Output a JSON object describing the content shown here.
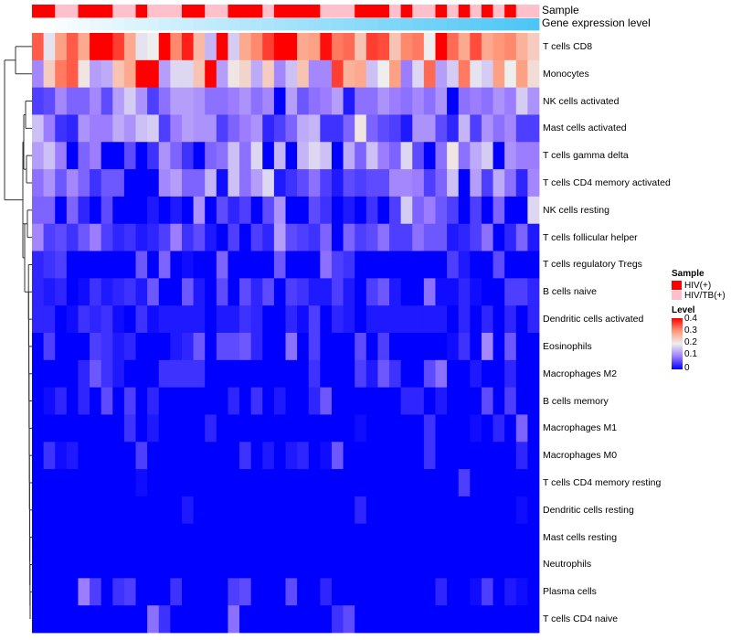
{
  "annotations": {
    "sample_label": "Sample",
    "gene_label": "Gene expression level",
    "gene_colors": [
      "#ffffff",
      "#4cc6f6"
    ]
  },
  "legend": {
    "sample_title": "Sample",
    "groups": [
      {
        "label": "HIV(+)",
        "color": "#ff0000"
      },
      {
        "label": "HIV/TB(+)",
        "color": "#ffc0cb"
      }
    ],
    "level_title": "Level",
    "ticks": [
      "0.4",
      "0.3",
      "0.2",
      "0.1",
      "0"
    ]
  },
  "chart_data": {
    "type": "heatmap",
    "title": "",
    "legend_placement": "right",
    "color_scale": {
      "min": 0,
      "max": 0.4,
      "stops": [
        [
          0,
          "#0000ff"
        ],
        [
          0.1,
          "#9c7cff"
        ],
        [
          0.2,
          "#eeeeee"
        ],
        [
          0.3,
          "#ff9878"
        ],
        [
          0.4,
          "#ff0000"
        ]
      ]
    },
    "sample_groups": [
      0,
      0,
      1,
      1,
      0,
      0,
      0,
      1,
      1,
      0,
      1,
      1,
      1,
      0,
      0,
      1,
      1,
      0,
      0,
      0,
      1,
      0,
      0,
      0,
      0,
      1,
      1,
      1,
      0,
      0,
      0,
      1,
      0,
      1,
      1,
      0,
      1,
      0,
      1,
      0,
      1,
      0,
      1,
      1
    ],
    "rows": [
      "T cells CD8",
      "Monocytes",
      "NK cells activated",
      "Mast cells activated",
      "T cells gamma delta",
      "T cells CD4 memory activated",
      "NK cells resting",
      "T cells follicular helper",
      "T cells regulatory  Tregs",
      "B cells naive",
      "Dendritic cells activated",
      "Eosinophils",
      "Macrophages M2",
      "B cells memory",
      "Macrophages M1",
      "Macrophages M0",
      "T cells CD4 memory resting",
      "Dendritic cells resting",
      "Mast cells resting",
      "Neutrophils",
      "Plasma cells",
      "T cells CD4 naive"
    ],
    "values": [
      [
        0.34,
        0.19,
        0.29,
        0.34,
        0.28,
        0.4,
        0.4,
        0.36,
        0.28,
        0.19,
        0.2,
        0.4,
        0.31,
        0.38,
        0.26,
        0.15,
        0.4,
        0.17,
        0.28,
        0.31,
        0.36,
        0.4,
        0.4,
        0.28,
        0.29,
        0.39,
        0.32,
        0.33,
        0.25,
        0.36,
        0.35,
        0.25,
        0.31,
        0.32,
        0.2,
        0.4,
        0.33,
        0.28,
        0.35,
        0.28,
        0.3,
        0.31,
        0.27,
        0.24
      ],
      [
        0.11,
        0.24,
        0.32,
        0.34,
        0.21,
        0.13,
        0.14,
        0.25,
        0.28,
        0.4,
        0.4,
        0.13,
        0.18,
        0.18,
        0.25,
        0.4,
        0.13,
        0.21,
        0.23,
        0.14,
        0.24,
        0.11,
        0.16,
        0.25,
        0.11,
        0.11,
        0.36,
        0.27,
        0.28,
        0.16,
        0.2,
        0.29,
        0.1,
        0.18,
        0.33,
        0.13,
        0.17,
        0.32,
        0.19,
        0.17,
        0.29,
        0.2,
        0.29,
        0.22
      ],
      [
        0.05,
        0.06,
        0.11,
        0.08,
        0.08,
        0.11,
        0.06,
        0.13,
        0.17,
        0.12,
        0.05,
        0.09,
        0.13,
        0.13,
        0.12,
        0.09,
        0.09,
        0.1,
        0.12,
        0.09,
        0.11,
        0,
        0.13,
        0.07,
        0.09,
        0.1,
        0.13,
        0.02,
        0.09,
        0.09,
        0.12,
        0.1,
        0.09,
        0.11,
        0.09,
        0.12,
        0,
        0.09,
        0.1,
        0.09,
        0.12,
        0.1,
        0.17,
        0.12
      ],
      [
        0.16,
        0.1,
        0.04,
        0.03,
        0.12,
        0.1,
        0.1,
        0.14,
        0.12,
        0.16,
        0.17,
        0.05,
        0.1,
        0.13,
        0.12,
        0.12,
        0.05,
        0.08,
        0.1,
        0.12,
        0.03,
        0.05,
        0.08,
        0.14,
        0.15,
        0.04,
        0.04,
        0.08,
        0.21,
        0.08,
        0.06,
        0.05,
        0.02,
        0.12,
        0.12,
        0.06,
        0.03,
        0.15,
        0.05,
        0.12,
        0.09,
        0.11,
        0.05,
        0.05
      ],
      [
        0.13,
        0.16,
        0.1,
        0,
        0.08,
        0.1,
        0,
        0,
        0.06,
        0,
        0.04,
        0.12,
        0.08,
        0.04,
        0,
        0.08,
        0.09,
        0.16,
        0.09,
        0.18,
        0,
        0.15,
        0,
        0.15,
        0.18,
        0.16,
        0,
        0.14,
        0.08,
        0.16,
        0.1,
        0.08,
        0.18,
        0.06,
        0,
        0.09,
        0.21,
        0.09,
        0.14,
        0.17,
        0,
        0.12,
        0.1,
        0.1
      ],
      [
        0.09,
        0.12,
        0.07,
        0.11,
        0.08,
        0.04,
        0.07,
        0.07,
        0,
        0,
        0,
        0.11,
        0.13,
        0.08,
        0.08,
        0.15,
        0.01,
        0.16,
        0.09,
        0.13,
        0.18,
        0.02,
        0.04,
        0.06,
        0.09,
        0.05,
        0.02,
        0.06,
        0.05,
        0.06,
        0.06,
        0.11,
        0.11,
        0.1,
        0.05,
        0.08,
        0.16,
        0,
        0.13,
        0.05,
        0.14,
        0.09,
        0.03,
        0.11
      ],
      [
        0.08,
        0.08,
        0,
        0.08,
        0.03,
        0,
        0.06,
        0,
        0,
        0,
        0.02,
        0,
        0.02,
        0,
        0.12,
        0,
        0.06,
        0.03,
        0.05,
        0,
        0.06,
        0.12,
        0,
        0,
        0.06,
        0.04,
        0,
        0.02,
        0,
        0.04,
        0,
        0.05,
        0.17,
        0.08,
        0.1,
        0.07,
        0.05,
        0,
        0.05,
        0,
        0.08,
        0,
        0,
        0.18
      ],
      [
        0.11,
        0.05,
        0.06,
        0.04,
        0.07,
        0.1,
        0.05,
        0.03,
        0.04,
        0.02,
        0.03,
        0.05,
        0.1,
        0.04,
        0.06,
        0.02,
        0,
        0.05,
        0,
        0.05,
        0.03,
        0.13,
        0.06,
        0.05,
        0.04,
        0.08,
        0,
        0.08,
        0.05,
        0.06,
        0.09,
        0.05,
        0.05,
        0.09,
        0.07,
        0.07,
        0.02,
        0.03,
        0.05,
        0.09,
        0,
        0.03,
        0.08,
        0.02
      ],
      [
        0.03,
        0.04,
        0.05,
        0,
        0,
        0,
        0,
        0,
        0,
        0.07,
        0,
        0.08,
        0,
        0.01,
        0,
        0,
        0.08,
        0,
        0,
        0,
        0,
        0.07,
        0,
        0,
        0,
        0.09,
        0.05,
        0.04,
        0,
        0,
        0,
        0,
        0,
        0,
        0,
        0,
        0.05,
        0.02,
        0,
        0,
        0.06,
        0,
        0,
        0
      ],
      [
        0.03,
        0.02,
        0.03,
        0,
        0.01,
        0.04,
        0.02,
        0.03,
        0.04,
        0.02,
        0.07,
        0,
        0,
        0.07,
        0.02,
        0,
        0.06,
        0,
        0.06,
        0.03,
        0.06,
        0,
        0.05,
        0.04,
        0.02,
        0.02,
        0.05,
        0.02,
        0,
        0.05,
        0.07,
        0.02,
        0,
        0,
        0.09,
        0.01,
        0.01,
        0.03,
        0.01,
        0,
        0,
        0.05,
        0.05,
        0.03
      ],
      [
        0.03,
        0.03,
        0,
        0.01,
        0.04,
        0.03,
        0.04,
        0.01,
        0,
        0.04,
        0.01,
        0.02,
        0.02,
        0.02,
        0.02,
        0,
        0.02,
        0.02,
        0.04,
        0.03,
        0,
        0,
        0.03,
        0.01,
        0.05,
        0,
        0.03,
        0.02,
        0,
        0.02,
        0.02,
        0.02,
        0.02,
        0.02,
        0.02,
        0.02,
        0,
        0.03,
        0,
        0.03,
        0,
        0.03,
        0,
        0.03
      ],
      [
        0,
        0.05,
        0,
        0,
        0,
        0.05,
        0.04,
        0.02,
        0.03,
        0,
        0,
        0,
        0.02,
        0.03,
        0.07,
        0,
        0.06,
        0.06,
        0.07,
        0.03,
        0,
        0,
        0.09,
        0,
        0.05,
        0,
        0,
        0,
        0.06,
        0,
        0.05,
        0,
        0,
        0,
        0,
        0,
        0.01,
        0.04,
        0,
        0.11,
        0,
        0.07,
        0,
        0
      ],
      [
        0,
        0,
        0,
        0,
        0.03,
        0.07,
        0.04,
        0.02,
        0,
        0,
        0,
        0.04,
        0.04,
        0.04,
        0.04,
        0,
        0,
        0,
        0,
        0,
        0,
        0,
        0,
        0,
        0.04,
        0,
        0,
        0,
        0.05,
        0.02,
        0.07,
        0.04,
        0,
        0,
        0.06,
        0.09,
        0,
        0,
        0.02,
        0,
        0,
        0.03,
        0,
        0
      ],
      [
        0,
        0.01,
        0.03,
        0,
        0.03,
        0,
        0.06,
        0,
        0.05,
        0,
        0.03,
        0,
        0,
        0,
        0,
        0,
        0,
        0.03,
        0,
        0.04,
        0,
        0.02,
        0,
        0,
        0.03,
        0.07,
        0,
        0,
        0,
        0,
        0,
        0,
        0.03,
        0.03,
        0,
        0.02,
        0,
        0,
        0,
        0.06,
        0,
        0.05,
        0,
        0
      ],
      [
        0,
        0,
        0,
        0,
        0,
        0,
        0,
        0,
        0.04,
        0,
        0.02,
        0,
        0,
        0,
        0,
        0.03,
        0,
        0,
        0,
        0,
        0,
        0,
        0,
        0,
        0,
        0,
        0,
        0,
        0.01,
        0,
        0,
        0,
        0,
        0,
        0.04,
        0,
        0,
        0,
        0.01,
        0,
        0.03,
        0,
        0.08,
        0
      ],
      [
        0,
        0.04,
        0.01,
        0.02,
        0,
        0,
        0,
        0,
        0,
        0.05,
        0,
        0,
        0,
        0,
        0,
        0,
        0,
        0,
        0.04,
        0,
        0.02,
        0,
        0.02,
        0.03,
        0,
        0.01,
        0.07,
        0,
        0,
        0,
        0,
        0,
        0,
        0,
        0.04,
        0,
        0,
        0,
        0,
        0,
        0,
        0,
        0.03,
        0
      ],
      [
        0,
        0,
        0,
        0,
        0,
        0,
        0,
        0,
        0,
        0.01,
        0,
        0,
        0,
        0,
        0,
        0,
        0,
        0,
        0,
        0,
        0,
        0,
        0,
        0,
        0,
        0,
        0,
        0,
        0,
        0,
        0,
        0,
        0,
        0,
        0,
        0,
        0,
        0.05,
        0,
        0,
        0,
        0,
        0,
        0
      ],
      [
        0,
        0,
        0,
        0,
        0,
        0,
        0,
        0,
        0,
        0,
        0,
        0,
        0,
        0.02,
        0,
        0,
        0,
        0,
        0,
        0,
        0,
        0,
        0,
        0,
        0,
        0,
        0,
        0,
        0.03,
        0,
        0,
        0,
        0,
        0,
        0,
        0,
        0,
        0,
        0,
        0,
        0,
        0,
        0.01,
        0
      ],
      [
        0,
        0,
        0,
        0,
        0,
        0,
        0,
        0,
        0,
        0,
        0,
        0,
        0,
        0,
        0,
        0,
        0,
        0,
        0,
        0,
        0,
        0,
        0,
        0,
        0,
        0,
        0,
        0,
        0,
        0,
        0,
        0,
        0,
        0,
        0,
        0,
        0,
        0,
        0,
        0,
        0,
        0,
        0,
        0
      ],
      [
        0,
        0,
        0,
        0,
        0,
        0,
        0,
        0,
        0,
        0,
        0,
        0,
        0,
        0,
        0,
        0,
        0,
        0,
        0,
        0,
        0,
        0,
        0,
        0,
        0,
        0,
        0,
        0,
        0,
        0,
        0,
        0,
        0,
        0,
        0,
        0,
        0,
        0,
        0,
        0,
        0,
        0,
        0,
        0
      ],
      [
        0,
        0,
        0,
        0,
        0.1,
        0.05,
        0,
        0.04,
        0.05,
        0,
        0,
        0,
        0.04,
        0,
        0,
        0,
        0,
        0.05,
        0.06,
        0,
        0,
        0,
        0.06,
        0,
        0,
        0.03,
        0,
        0,
        0,
        0,
        0,
        0,
        0,
        0,
        0,
        0.03,
        0,
        0,
        0.01,
        0.05,
        0,
        0.02,
        0.01,
        0
      ],
      [
        0,
        0,
        0,
        0,
        0,
        0,
        0,
        0,
        0,
        0,
        0.09,
        0.04,
        0,
        0,
        0,
        0,
        0,
        0.09,
        0,
        0,
        0,
        0,
        0,
        0,
        0,
        0,
        0.04,
        0.06,
        0,
        0,
        0,
        0,
        0,
        0,
        0,
        0,
        0,
        0,
        0,
        0,
        0,
        0,
        0,
        0
      ]
    ]
  }
}
